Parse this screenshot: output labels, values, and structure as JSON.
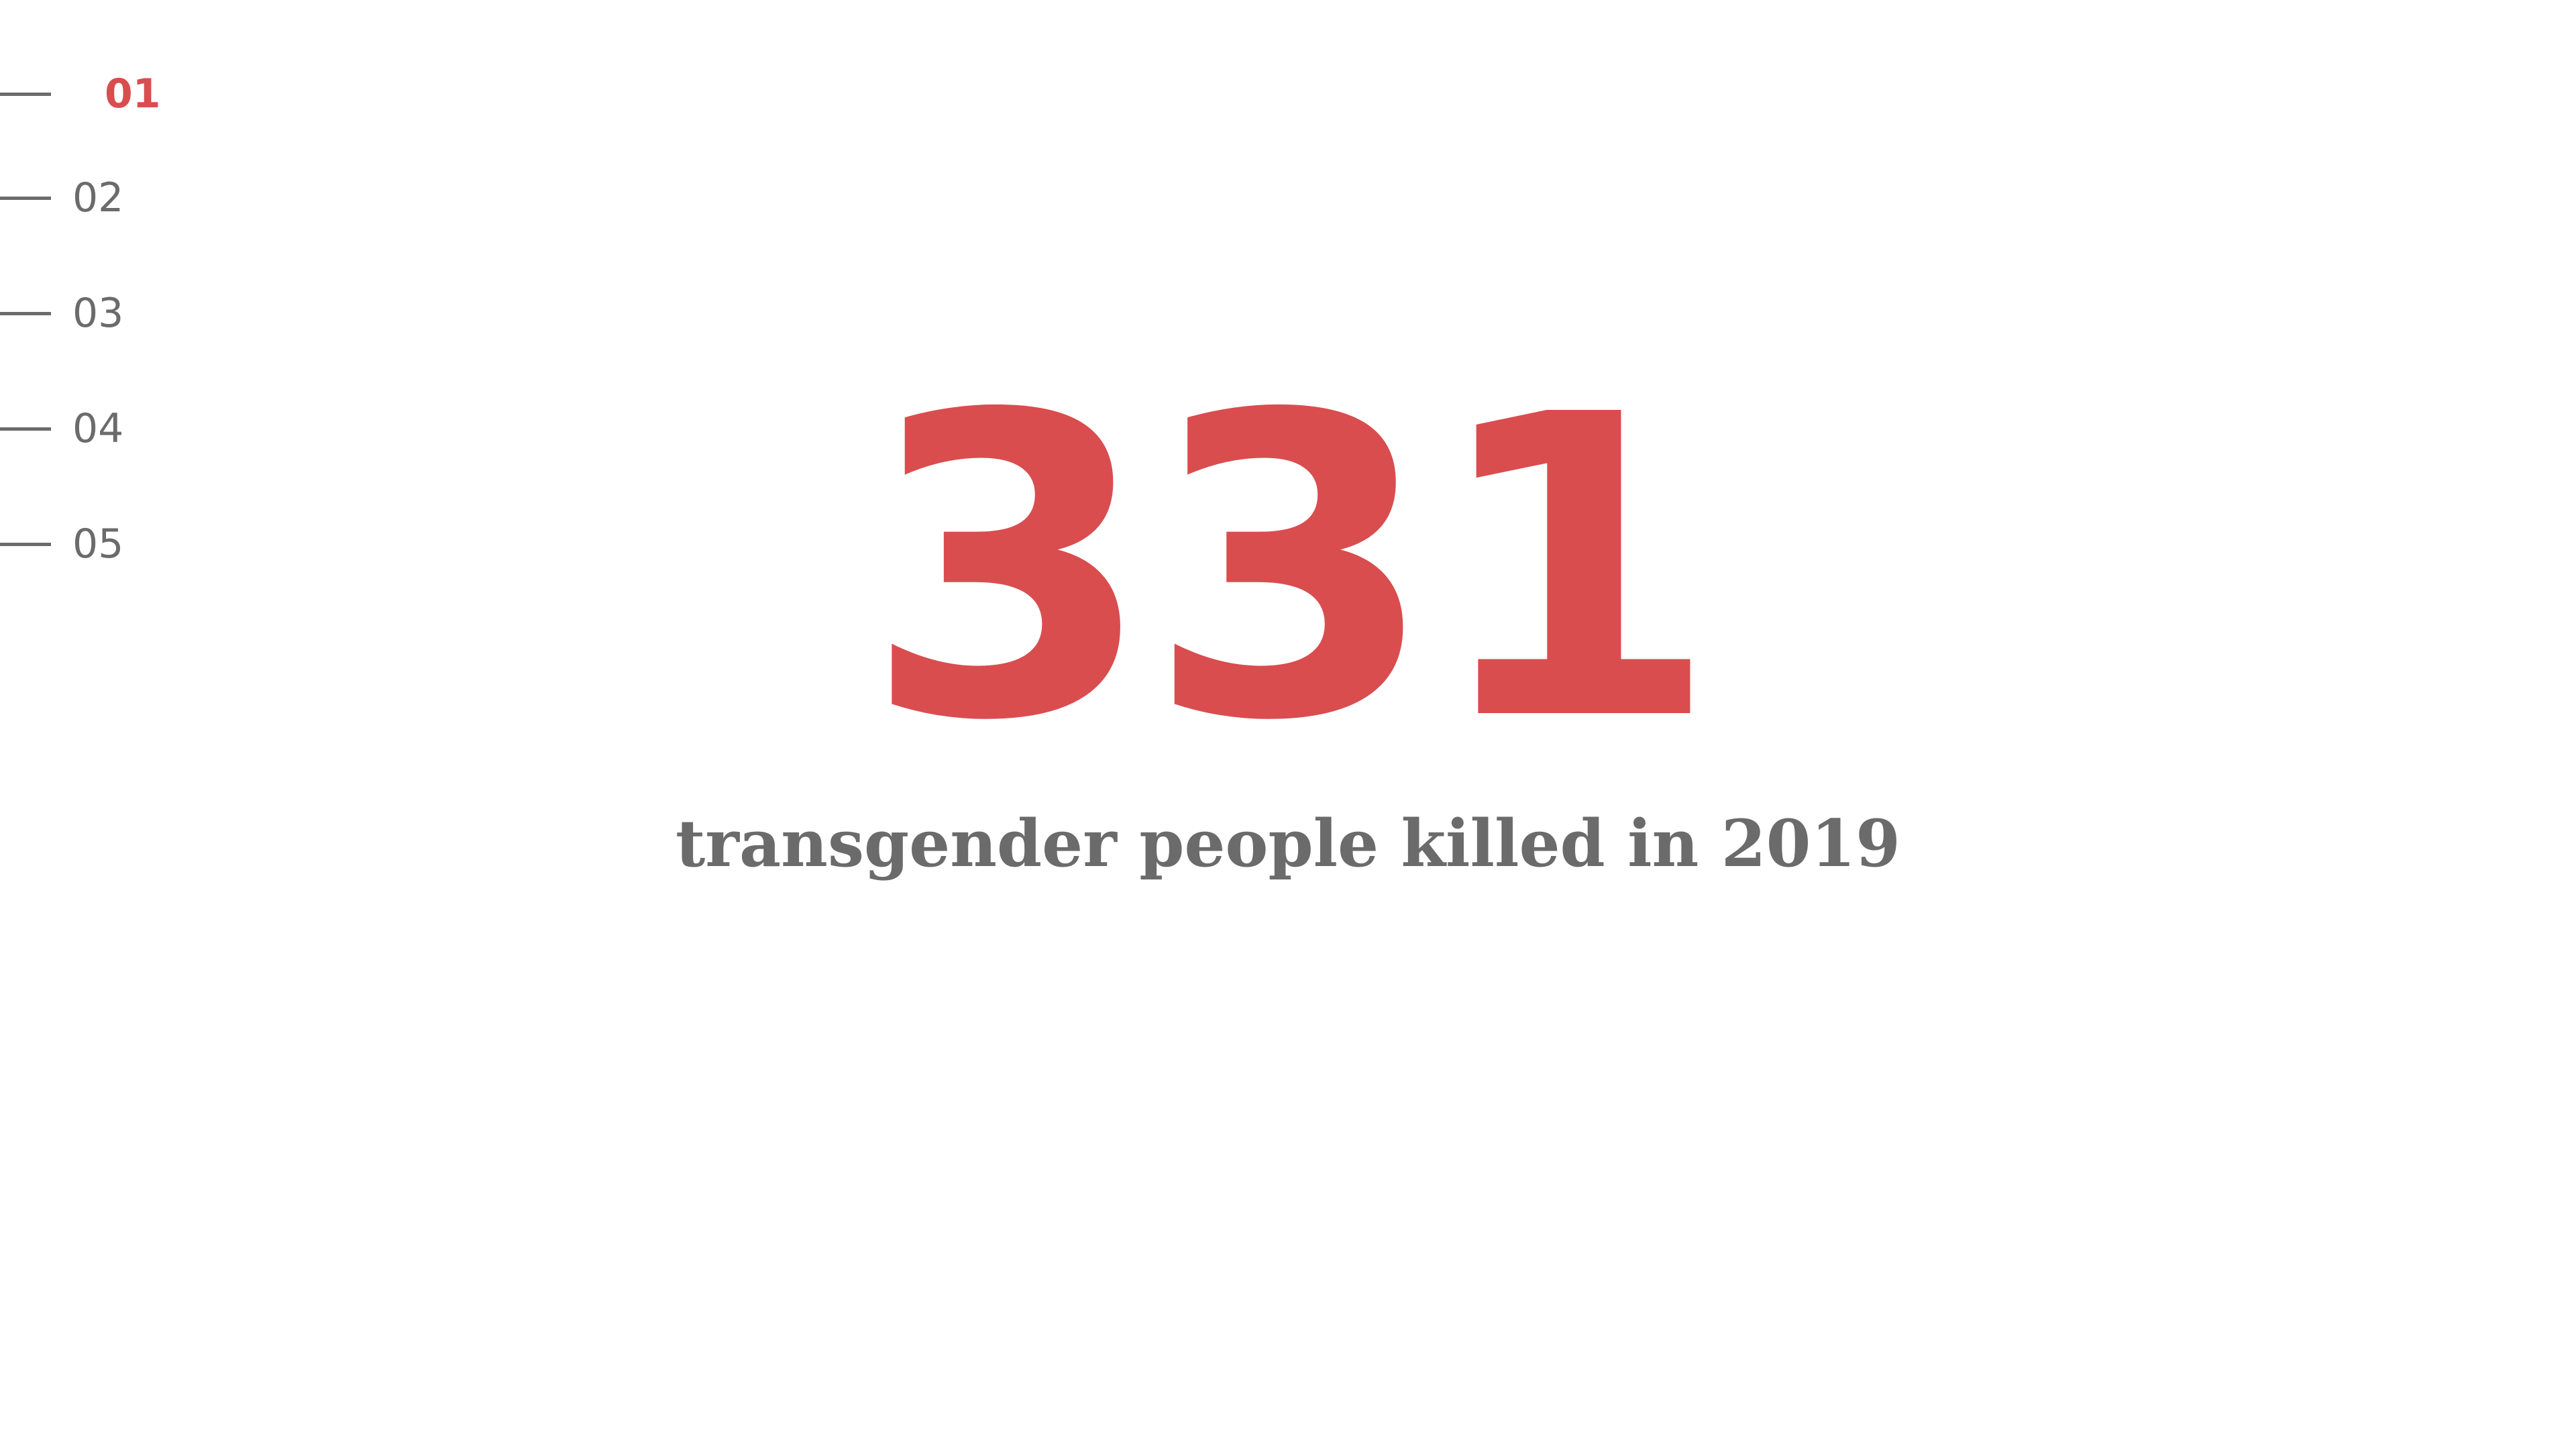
{
  "nav": {
    "items": [
      {
        "label": "01",
        "active": true
      },
      {
        "label": "02",
        "active": false
      },
      {
        "label": "03",
        "active": false
      },
      {
        "label": "04",
        "active": false
      },
      {
        "label": "05",
        "active": false
      }
    ]
  },
  "stat": {
    "number": "331",
    "caption": "transgender people killed in 2019"
  },
  "colors": {
    "accent": "#d94d4f",
    "text": "#6b6b6b",
    "background": "#ffffff"
  }
}
